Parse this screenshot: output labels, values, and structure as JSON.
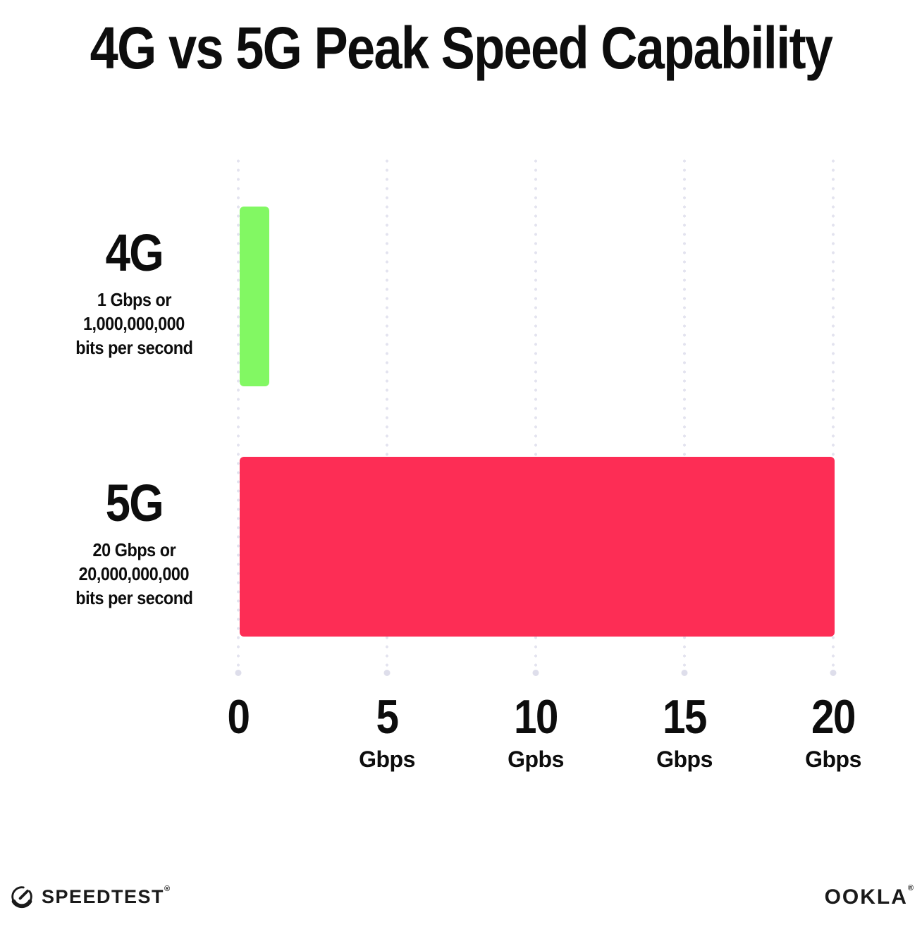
{
  "title": "4G vs 5G Peak Speed Capability",
  "colors": {
    "bar_4g": "#82F863",
    "bar_5g": "#FD2D55",
    "grid_dot": "#E3E3EF",
    "text": "#0D0D0D",
    "background": "#FFFFFF"
  },
  "chart_data": {
    "type": "bar",
    "orientation": "horizontal",
    "title": "4G vs 5G Peak Speed Capability",
    "xlabel": "Gbps",
    "ylabel": "",
    "xlim": [
      0,
      20
    ],
    "grid": "dotted vertical gridlines at each tick",
    "legend": "none",
    "categories": [
      "4G",
      "5G"
    ],
    "values": [
      1,
      20
    ],
    "rows": [
      {
        "label": "4G",
        "value": 1,
        "color": "#82F863",
        "sublabel_line1": "1 Gbps or",
        "sublabel_line2": "1,000,000,000",
        "sublabel_line3": "bits per second"
      },
      {
        "label": "5G",
        "value": 20,
        "color": "#FD2D55",
        "sublabel_line1": "20 Gbps or",
        "sublabel_line2": "20,000,000,000",
        "sublabel_line3": "bits per second"
      }
    ],
    "ticks": [
      {
        "value": 0,
        "label": "0",
        "unit": ""
      },
      {
        "value": 5,
        "label": "5",
        "unit": "Gbps"
      },
      {
        "value": 10,
        "label": "10",
        "unit": "Gpbs"
      },
      {
        "value": 15,
        "label": "15",
        "unit": "Gbps"
      },
      {
        "value": 20,
        "label": "20",
        "unit": "Gbps"
      }
    ]
  },
  "footer": {
    "speedtest_label": "SPEEDTEST",
    "speedtest_mark": "®",
    "ookla_label": "OOKLA",
    "ookla_mark": "®"
  }
}
